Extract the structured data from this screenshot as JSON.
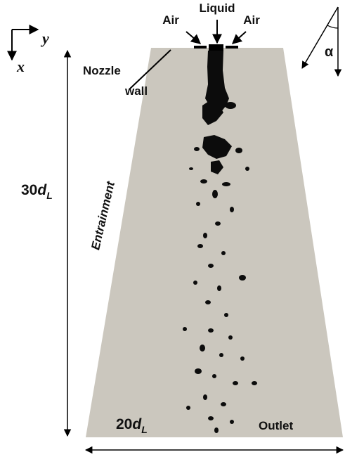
{
  "axes": {
    "x": "x",
    "y": "y"
  },
  "nozzle": {
    "left_inlet": "Air",
    "center_inlet": "Liquid",
    "right_inlet": "Air",
    "wall_label": [
      "Nozzle",
      "wall"
    ]
  },
  "angle": "α",
  "dimensions": {
    "height": {
      "number": "30",
      "symbol": "d",
      "subscript": "L"
    },
    "width": {
      "number": "20",
      "symbol": "d",
      "subscript": "L"
    }
  },
  "regions": {
    "side": "Entrainment",
    "bottom": "Outlet"
  }
}
